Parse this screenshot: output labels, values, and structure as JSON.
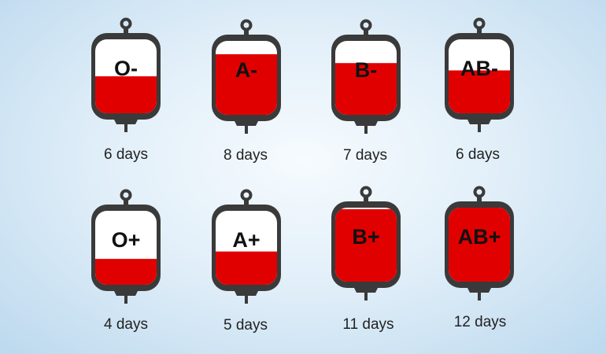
{
  "colors": {
    "blood": "#e10000",
    "outline": "#3a3a3a",
    "bag_empty": "#ffffff",
    "background": "#dcecf8"
  },
  "bags": [
    {
      "type": "O-",
      "days": "6 days",
      "fill_fraction": 0.5
    },
    {
      "type": "A-",
      "days": "8 days",
      "fill_fraction": 0.82
    },
    {
      "type": "B-",
      "days": "7 days",
      "fill_fraction": 0.7
    },
    {
      "type": "AB-",
      "days": "6 days",
      "fill_fraction": 0.58
    },
    {
      "type": "O+",
      "days": "4 days",
      "fill_fraction": 0.35
    },
    {
      "type": "A+",
      "days": "5 days",
      "fill_fraction": 0.45
    },
    {
      "type": "B+",
      "days": "11 days",
      "fill_fraction": 0.98
    },
    {
      "type": "AB+",
      "days": "12 days",
      "fill_fraction": 1.0
    }
  ]
}
